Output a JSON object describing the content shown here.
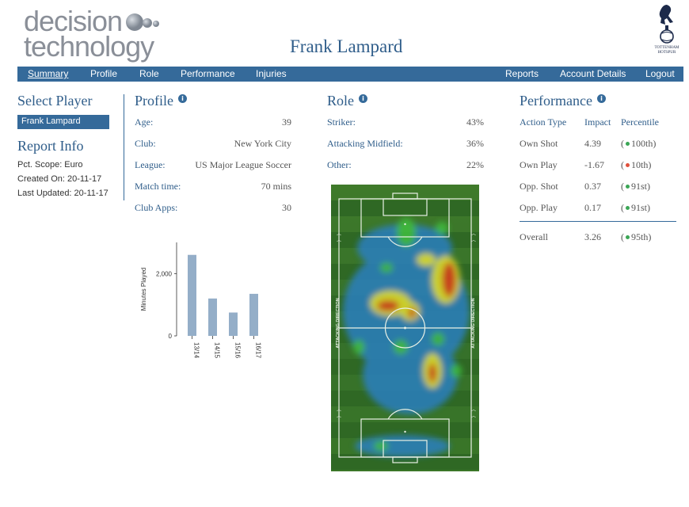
{
  "brand": {
    "line1": "decision",
    "line2": "technology"
  },
  "header": {
    "player_name": "Frank Lampard"
  },
  "crest": {
    "text": "TOTTENHAM HOTSPUR"
  },
  "nav": {
    "left": [
      "Summary",
      "Profile",
      "Role",
      "Performance",
      "Injuries"
    ],
    "right": [
      "Reports",
      "Account Details",
      "Logout"
    ]
  },
  "select_player": {
    "heading": "Select Player",
    "selected": "Frank Lampard"
  },
  "report_info": {
    "heading": "Report Info",
    "lines": [
      "Pct. Scope: Euro",
      "Created On: 20-11-17",
      "Last Updated: 20-11-17"
    ]
  },
  "profile": {
    "heading": "Profile",
    "rows": [
      {
        "label": "Age:",
        "value": "39"
      },
      {
        "label": "Club:",
        "value": "New York City"
      },
      {
        "label": "League:",
        "value": "US Major League Soccer"
      },
      {
        "label": "Match time:",
        "value": "70 mins"
      },
      {
        "label": "Club Apps:",
        "value": "30"
      }
    ]
  },
  "role": {
    "heading": "Role",
    "rows": [
      {
        "label": "Striker:",
        "value": "43%"
      },
      {
        "label": "Attacking Midfield:",
        "value": "36%"
      },
      {
        "label": "Other:",
        "value": "22%"
      }
    ],
    "pitch_label": "ATTACKING DIRECTION"
  },
  "performance": {
    "heading": "Performance",
    "columns": [
      "Action Type",
      "Impact",
      "Percentile"
    ],
    "rows": [
      {
        "action": "Own Shot",
        "impact": "4.39",
        "percentile": "100th",
        "dot_color": "#3aa655"
      },
      {
        "action": "Own Play",
        "impact": "-1.67",
        "percentile": "10th",
        "dot_color": "#e0503c"
      },
      {
        "action": "Opp. Shot",
        "impact": "0.37",
        "percentile": "91st",
        "dot_color": "#3aa655"
      },
      {
        "action": "Opp. Play",
        "impact": "0.17",
        "percentile": "91st",
        "dot_color": "#3aa655"
      }
    ],
    "overall": {
      "action": "Overall",
      "impact": "3.26",
      "percentile": "95th",
      "dot_color": "#3aa655"
    }
  },
  "chart_data": {
    "type": "bar",
    "categories": [
      "13/14",
      "14/15",
      "15/16",
      "16/17"
    ],
    "values": [
      2600,
      1200,
      750,
      1350
    ],
    "ylabel": "Minutes Played",
    "yticks": [
      "0",
      "2,000"
    ],
    "ylim": [
      0,
      3000
    ],
    "bar_color": "#94aec8"
  },
  "colors": {
    "accent": "#356a9a",
    "heading": "#2f5d8a"
  }
}
